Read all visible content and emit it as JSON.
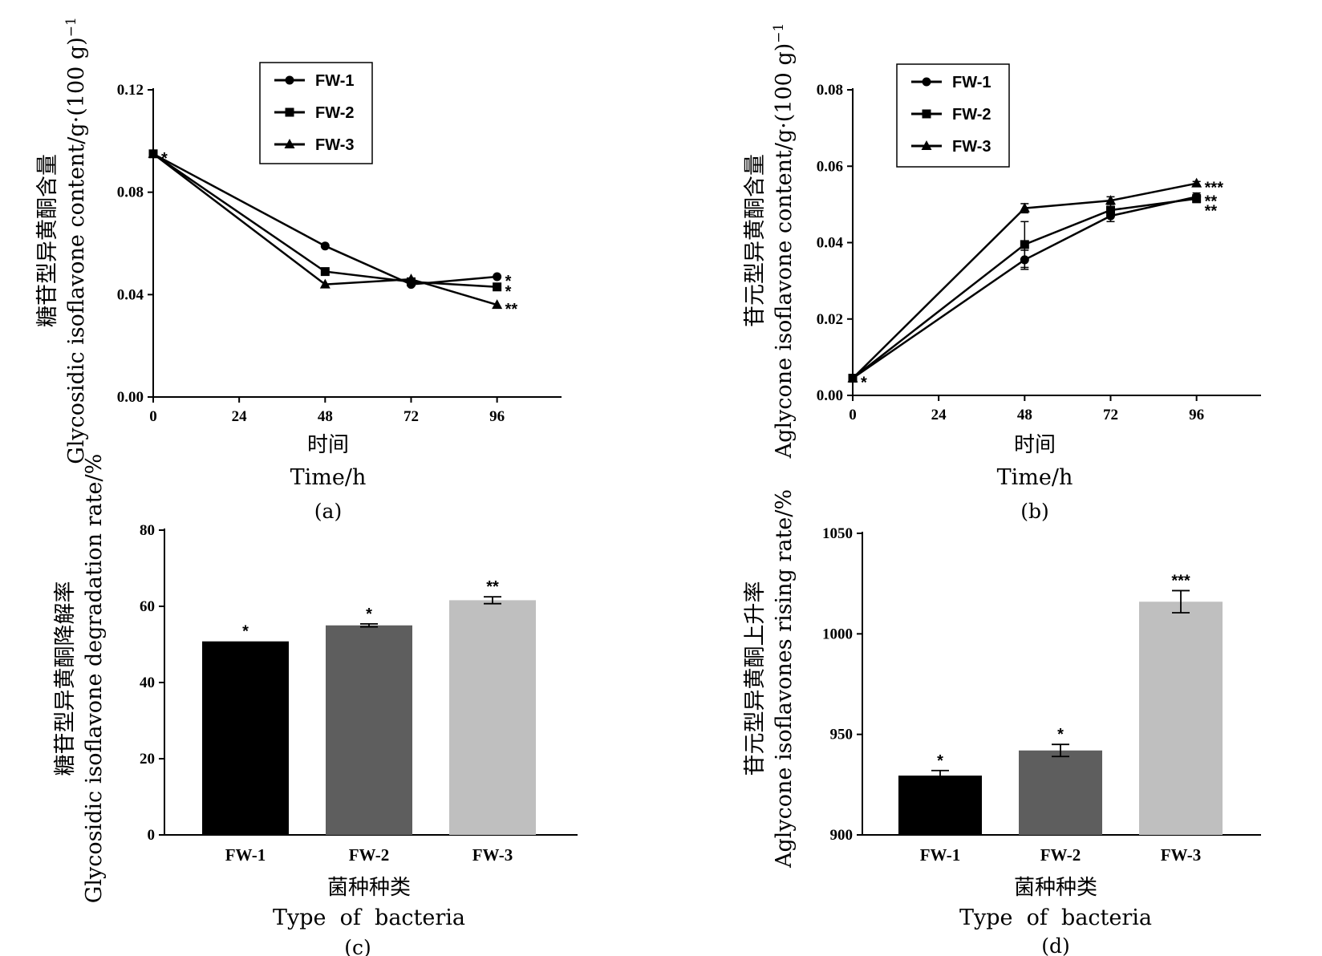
{
  "chart_data": [
    {
      "panel": "(a)",
      "type": "line",
      "ylabel_cn": "糖苷型异黄酮含量",
      "ylabel_en": "Glycosidic isoflavone content/g·(100 g)",
      "ylabel_sup": "−1",
      "xlabel_cn": "时间",
      "xlabel_en": "Time/h",
      "x": [
        0,
        48,
        72,
        96
      ],
      "xticks": [
        "0",
        "24",
        "48",
        "72",
        "96"
      ],
      "xlim": [
        0,
        114
      ],
      "ylim": [
        0,
        0.12
      ],
      "yticks": [
        "0.00",
        "0.04",
        "0.08",
        "0.12"
      ],
      "legend_position": "top",
      "series": [
        {
          "name": "FW-1",
          "marker": "circle",
          "values": [
            0.095,
            0.059,
            0.044,
            0.047
          ]
        },
        {
          "name": "FW-2",
          "marker": "square",
          "values": [
            0.095,
            0.049,
            0.045,
            0.043
          ]
        },
        {
          "name": "FW-3",
          "marker": "triangle",
          "values": [
            0.095,
            0.044,
            0.046,
            0.036
          ]
        }
      ],
      "annotations": [
        {
          "text": "*",
          "x": 0,
          "y": 0.095
        },
        {
          "text": "*",
          "x": 96,
          "y": 0.047
        },
        {
          "text": "*",
          "x": 96,
          "y": 0.043
        },
        {
          "text": "**",
          "x": 96,
          "y": 0.036
        }
      ]
    },
    {
      "panel": "(b)",
      "type": "line",
      "ylabel_cn": "苷元型异黄酮含量",
      "ylabel_en": "Aglycone isoflavone content/g·(100 g)",
      "ylabel_sup": "−1",
      "xlabel_cn": "时间",
      "xlabel_en": "Time/h",
      "x": [
        0,
        48,
        72,
        96
      ],
      "xticks": [
        "0",
        "24",
        "48",
        "72",
        "96"
      ],
      "xlim": [
        0,
        114
      ],
      "ylim": [
        0,
        0.08
      ],
      "yticks": [
        "0.00",
        "0.02",
        "0.04",
        "0.06",
        "0.08"
      ],
      "legend_position": "top-left",
      "series": [
        {
          "name": "FW-1",
          "marker": "circle",
          "values": [
            0.0045,
            0.0355,
            0.047,
            0.052
          ],
          "errors": [
            0,
            0.0025,
            0.0015,
            0.001
          ]
        },
        {
          "name": "FW-2",
          "marker": "square",
          "values": [
            0.0045,
            0.0395,
            0.0485,
            0.0515
          ],
          "errors": [
            0,
            0.006,
            0.0015,
            0.001
          ]
        },
        {
          "name": "FW-3",
          "marker": "triangle",
          "values": [
            0.0045,
            0.049,
            0.051,
            0.0555
          ],
          "errors": [
            0,
            0.0012,
            0.001,
            0.0005
          ]
        }
      ],
      "annotations": [
        {
          "text": "*",
          "x": 0,
          "y": 0.0045
        },
        {
          "text": "***",
          "x": 96,
          "y": 0.0555
        },
        {
          "text": "**",
          "x": 96,
          "y": 0.052
        },
        {
          "text": "**",
          "x": 96,
          "y": 0.0495
        }
      ]
    },
    {
      "panel": "(c)",
      "type": "bar",
      "ylabel_cn": "糖苷型异黄酮降解率",
      "ylabel_en": "Glycosidic isoflavone degradation rate/%",
      "xlabel_cn": "菌种种类",
      "xlabel_en": "Type  of  bacteria",
      "categories": [
        "FW-1",
        "FW-2",
        "FW-3"
      ],
      "values": [
        50.8,
        55.0,
        61.6
      ],
      "errors": [
        0,
        0.4,
        0.9
      ],
      "colors": [
        "#000000",
        "#5e5e5e",
        "#bfbfbf"
      ],
      "significance": [
        "*",
        "*",
        "**"
      ],
      "ylim": [
        0,
        80
      ],
      "yticks": [
        "0",
        "20",
        "40",
        "60",
        "80"
      ]
    },
    {
      "panel": "(d)",
      "type": "bar",
      "ylabel_cn": "苷元型异黄酮上升率",
      "ylabel_en": "Aglycone isoflavones rising rate/%",
      "xlabel_cn": "菌种种类",
      "xlabel_en": "Type  of  bacteria",
      "categories": [
        "FW-1",
        "FW-2",
        "FW-3"
      ],
      "values": [
        929.5,
        942.0,
        1016.0
      ],
      "errors": [
        2.5,
        3.0,
        5.5
      ],
      "colors": [
        "#000000",
        "#5e5e5e",
        "#bfbfbf"
      ],
      "significance": [
        "*",
        "*",
        "***"
      ],
      "ylim": [
        900,
        1050
      ],
      "yticks": [
        "900",
        "950",
        "1000",
        "1050"
      ]
    }
  ]
}
